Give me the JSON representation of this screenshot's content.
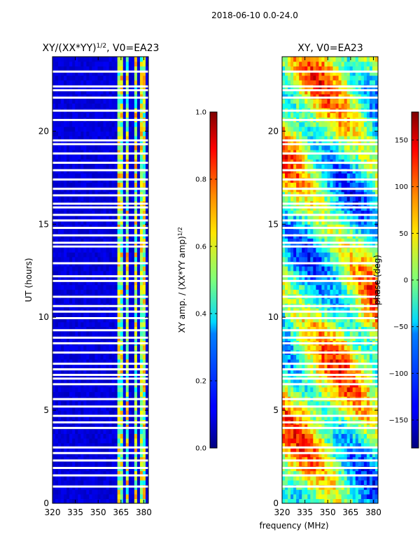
{
  "figure": {
    "suptitle": "2018-06-10 0.0-24.0",
    "xlabel": "frequency (MHz)"
  },
  "chart_data": [
    {
      "type": "heatmap",
      "title_base": "XY/(XX*YY)",
      "title_exp": "1/2",
      "title_rest": ", V0=EA23",
      "xlabel": "",
      "ylabel": "UT (hours)",
      "xlim": [
        320,
        383
      ],
      "ylim": [
        0,
        24
      ],
      "xticks": [
        "320",
        "335",
        "350",
        "365",
        "380"
      ],
      "xtick_values": [
        320,
        335,
        350,
        365,
        380
      ],
      "yticks": [
        "0",
        "5",
        "10",
        "15",
        "20"
      ],
      "ytick_values": [
        0,
        5,
        10,
        15,
        20
      ],
      "colorbar": {
        "label_base": "XY amp. / (XX*YY amp)",
        "label_exp": "1/2",
        "range": [
          0.0,
          1.0
        ],
        "ticks": [
          "0.0",
          "0.2",
          "0.4",
          "0.6",
          "0.8",
          "1.0"
        ],
        "tick_values": [
          0.0,
          0.2,
          0.4,
          0.6,
          0.8,
          1.0
        ]
      },
      "flagged_ut_hours": [
        0.9,
        1.5,
        1.9,
        2.3,
        2.7,
        3.0,
        4.05,
        4.35,
        4.7,
        5.2,
        5.6,
        6.4,
        6.7,
        6.9,
        7.2,
        7.5,
        8.1,
        8.6,
        8.9,
        9.3,
        9.95,
        10.3,
        10.6,
        11.1,
        11.95,
        12.2,
        12.9,
        13.8,
        14.0,
        14.4,
        14.8,
        15.2,
        15.5,
        15.9,
        16.1,
        16.55,
        16.9,
        17.4,
        17.9,
        18.3,
        18.8,
        19.3,
        19.5,
        20.6,
        21.1,
        21.8,
        22.2,
        22.4,
        23.2
      ],
      "rfi_bands_mhz": [
        [
          363.5,
          366.5
        ],
        [
          368.5,
          370.5
        ],
        [
          373.5,
          375.5
        ],
        [
          377.0,
          380.5
        ]
      ]
    },
    {
      "type": "heatmap",
      "title": "XY, V0=EA23",
      "xlabel": "",
      "ylabel": "",
      "xlim": [
        320,
        383
      ],
      "ylim": [
        0,
        24
      ],
      "xticks": [
        "320",
        "335",
        "350",
        "365",
        "380"
      ],
      "xtick_values": [
        320,
        335,
        350,
        365,
        380
      ],
      "yticks": [
        "0",
        "5",
        "10",
        "15",
        "20"
      ],
      "ytick_values": [
        0,
        5,
        10,
        15,
        20
      ],
      "colorbar": {
        "label": "phase (deg)",
        "range": [
          -180,
          180
        ],
        "ticks": [
          "−150",
          "−100",
          "−50",
          "0",
          "50",
          "100",
          "150"
        ],
        "tick_values": [
          -150,
          -100,
          -50,
          0,
          50,
          100,
          150
        ]
      },
      "flagged_ut_hours": [
        0.9,
        1.5,
        1.9,
        2.3,
        2.7,
        3.0,
        4.05,
        4.35,
        4.7,
        5.2,
        5.6,
        6.4,
        6.7,
        6.9,
        7.2,
        7.5,
        8.1,
        8.6,
        8.9,
        9.3,
        9.95,
        10.3,
        10.6,
        11.1,
        11.95,
        12.2,
        12.9,
        13.8,
        14.0,
        14.4,
        14.8,
        15.2,
        15.5,
        15.9,
        16.1,
        16.55,
        16.9,
        17.4,
        17.9,
        18.3,
        18.8,
        19.3,
        19.5,
        20.6,
        21.1,
        21.8,
        22.2,
        22.4,
        23.2
      ]
    }
  ]
}
